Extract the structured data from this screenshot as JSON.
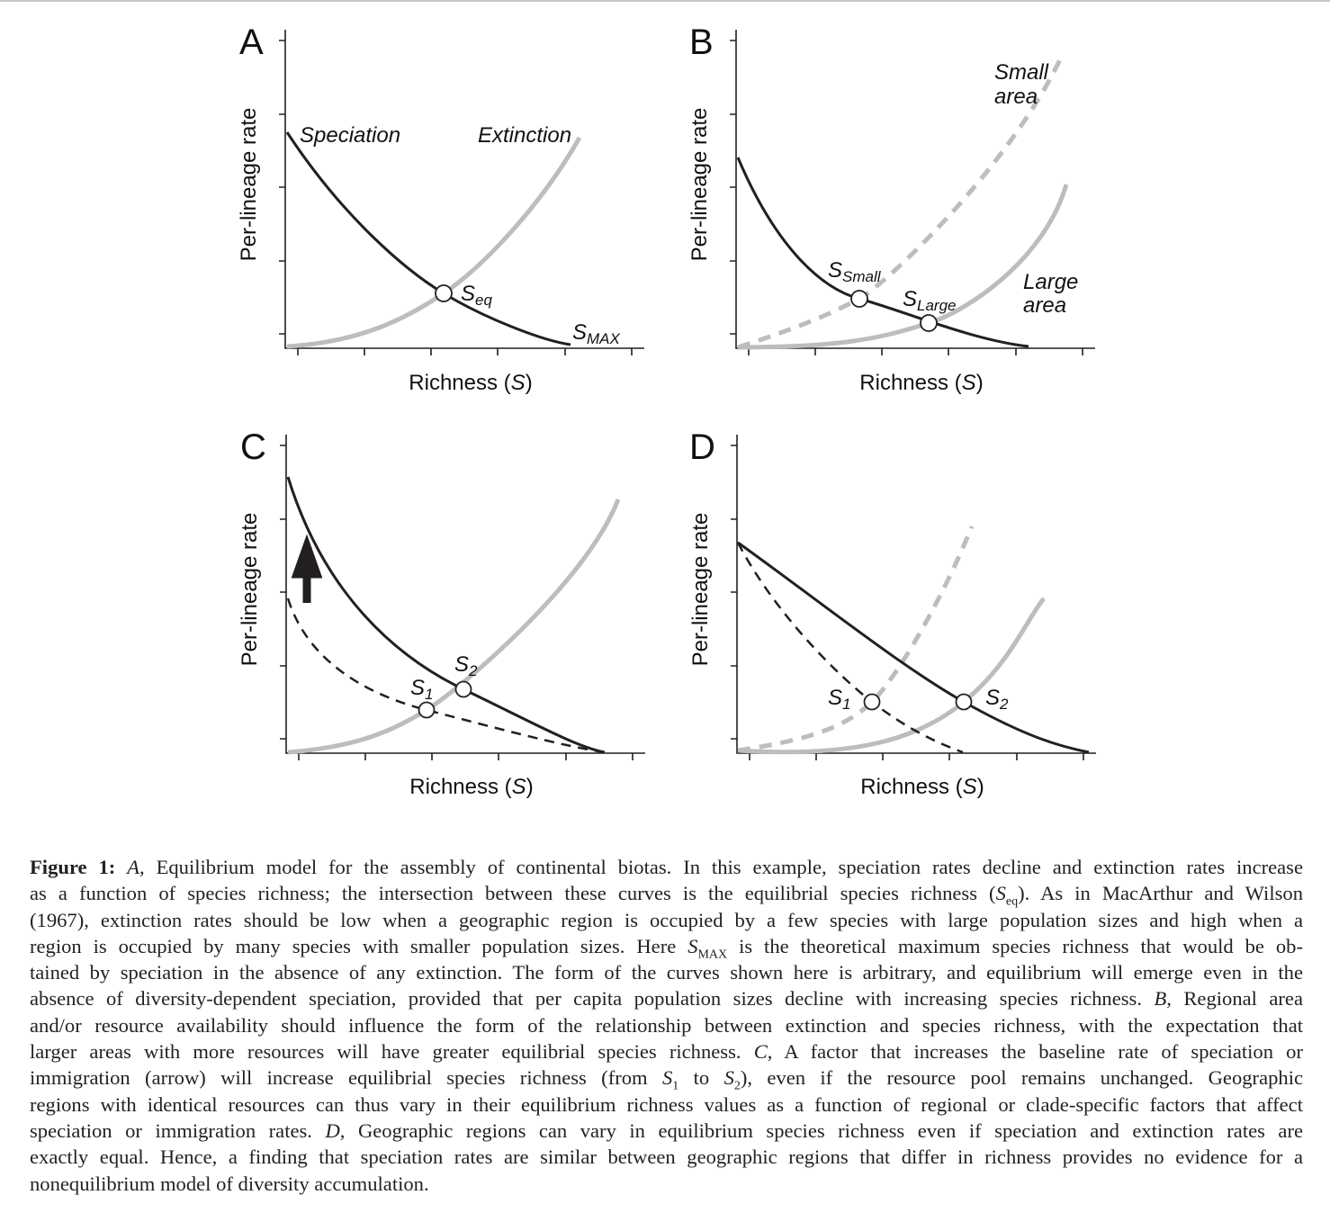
{
  "panels": {
    "A": {
      "letter": "A",
      "ylabel": "Per-lineage rate",
      "xlabel": "Richness (",
      "xlabel_var": "S",
      "xlabel_end": ")",
      "speciation": "Speciation",
      "extinction": "Extinction",
      "seq_s": "S",
      "seq_sub": "eq",
      "smax_s": "S",
      "smax_sub": "MAX"
    },
    "B": {
      "letter": "B",
      "ylabel": "Per-lineage rate",
      "xlabel": "Richness (",
      "xlabel_var": "S",
      "xlabel_end": ")",
      "small1": "Small",
      "small2": "area",
      "large1": "Large",
      "large2": "area",
      "ssmall_s": "S",
      "ssmall_sub": "Small",
      "slarge_s": "S",
      "slarge_sub": "Large"
    },
    "C": {
      "letter": "C",
      "ylabel": "Per-lineage rate",
      "xlabel": "Richness (",
      "xlabel_var": "S",
      "xlabel_end": ")",
      "s1": "S",
      "s1_sub": "1",
      "s2": "S",
      "s2_sub": "2"
    },
    "D": {
      "letter": "D",
      "ylabel": "Per-lineage rate",
      "xlabel": "Richness (",
      "xlabel_var": "S",
      "xlabel_end": ")",
      "s1": "S",
      "s1_sub": "1",
      "s2": "S",
      "s2_sub": "2"
    }
  },
  "colors": {
    "speciation": "#231f20",
    "extinction": "#bdbdbd"
  },
  "caption": [
    [
      {
        "t": "Figure 1:",
        "s": "b"
      },
      {
        "t": "  "
      },
      {
        "t": "A",
        "s": "i"
      },
      {
        "t": ", Equilibrium model for the assembly of continental biotas. In this example, speciation rates decline and extinction rates increase"
      }
    ],
    [
      {
        "t": "as a function of species richness; the intersection between these curves is the equilibrial species richness ("
      },
      {
        "t": "S",
        "s": "i"
      },
      {
        "t": "eq",
        "s": "sub"
      },
      {
        "t": "). As in MacArthur and Wilson"
      }
    ],
    [
      {
        "t": "(1967), extinction rates should be low when a geographic region is occupied by a few species with large population sizes and high when a"
      }
    ],
    [
      {
        "t": "region is occupied by many species with smaller population sizes. Here "
      },
      {
        "t": "S",
        "s": "i"
      },
      {
        "t": "MAX",
        "s": "sub"
      },
      {
        "t": " is the theoretical maximum species richness that would be ob-"
      }
    ],
    [
      {
        "t": "tained by speciation in the absence of any extinction. The form of the curves shown here is arbitrary, and equilibrium will emerge even in the"
      }
    ],
    [
      {
        "t": "absence of diversity-dependent speciation, provided that per capita population sizes decline with increasing species richness. "
      },
      {
        "t": "B",
        "s": "i"
      },
      {
        "t": ", Regional area"
      }
    ],
    [
      {
        "t": "and/or resource availability should influence the form of the relationship between extinction and species richness, with the expectation that"
      }
    ],
    [
      {
        "t": "larger areas with more resources will have greater equilibrial species richness. "
      },
      {
        "t": "C",
        "s": "i"
      },
      {
        "t": ", A factor that increases the baseline rate of speciation or"
      }
    ],
    [
      {
        "t": "immigration (arrow) will increase equilibrial species richness (from "
      },
      {
        "t": "S",
        "s": "i"
      },
      {
        "t": "1",
        "s": "sub"
      },
      {
        "t": " to "
      },
      {
        "t": "S",
        "s": "i"
      },
      {
        "t": "2",
        "s": "sub"
      },
      {
        "t": "), even if the resource pool remains unchanged. Geographic"
      }
    ],
    [
      {
        "t": "regions with identical resources can thus vary in their equilibrium richness values as a function of regional or clade-specific factors that affect"
      }
    ],
    [
      {
        "t": "speciation or immigration rates. "
      },
      {
        "t": "D",
        "s": "i"
      },
      {
        "t": ", Geographic regions can vary in equilibrium species richness even if speciation and extinction rates are"
      }
    ],
    [
      {
        "t": "exactly equal. Hence, a finding that speciation rates are similar between geographic regions that differ in richness provides no evidence for a"
      }
    ],
    [
      {
        "t": "nonequilibrium model of diversity accumulation."
      }
    ]
  ]
}
